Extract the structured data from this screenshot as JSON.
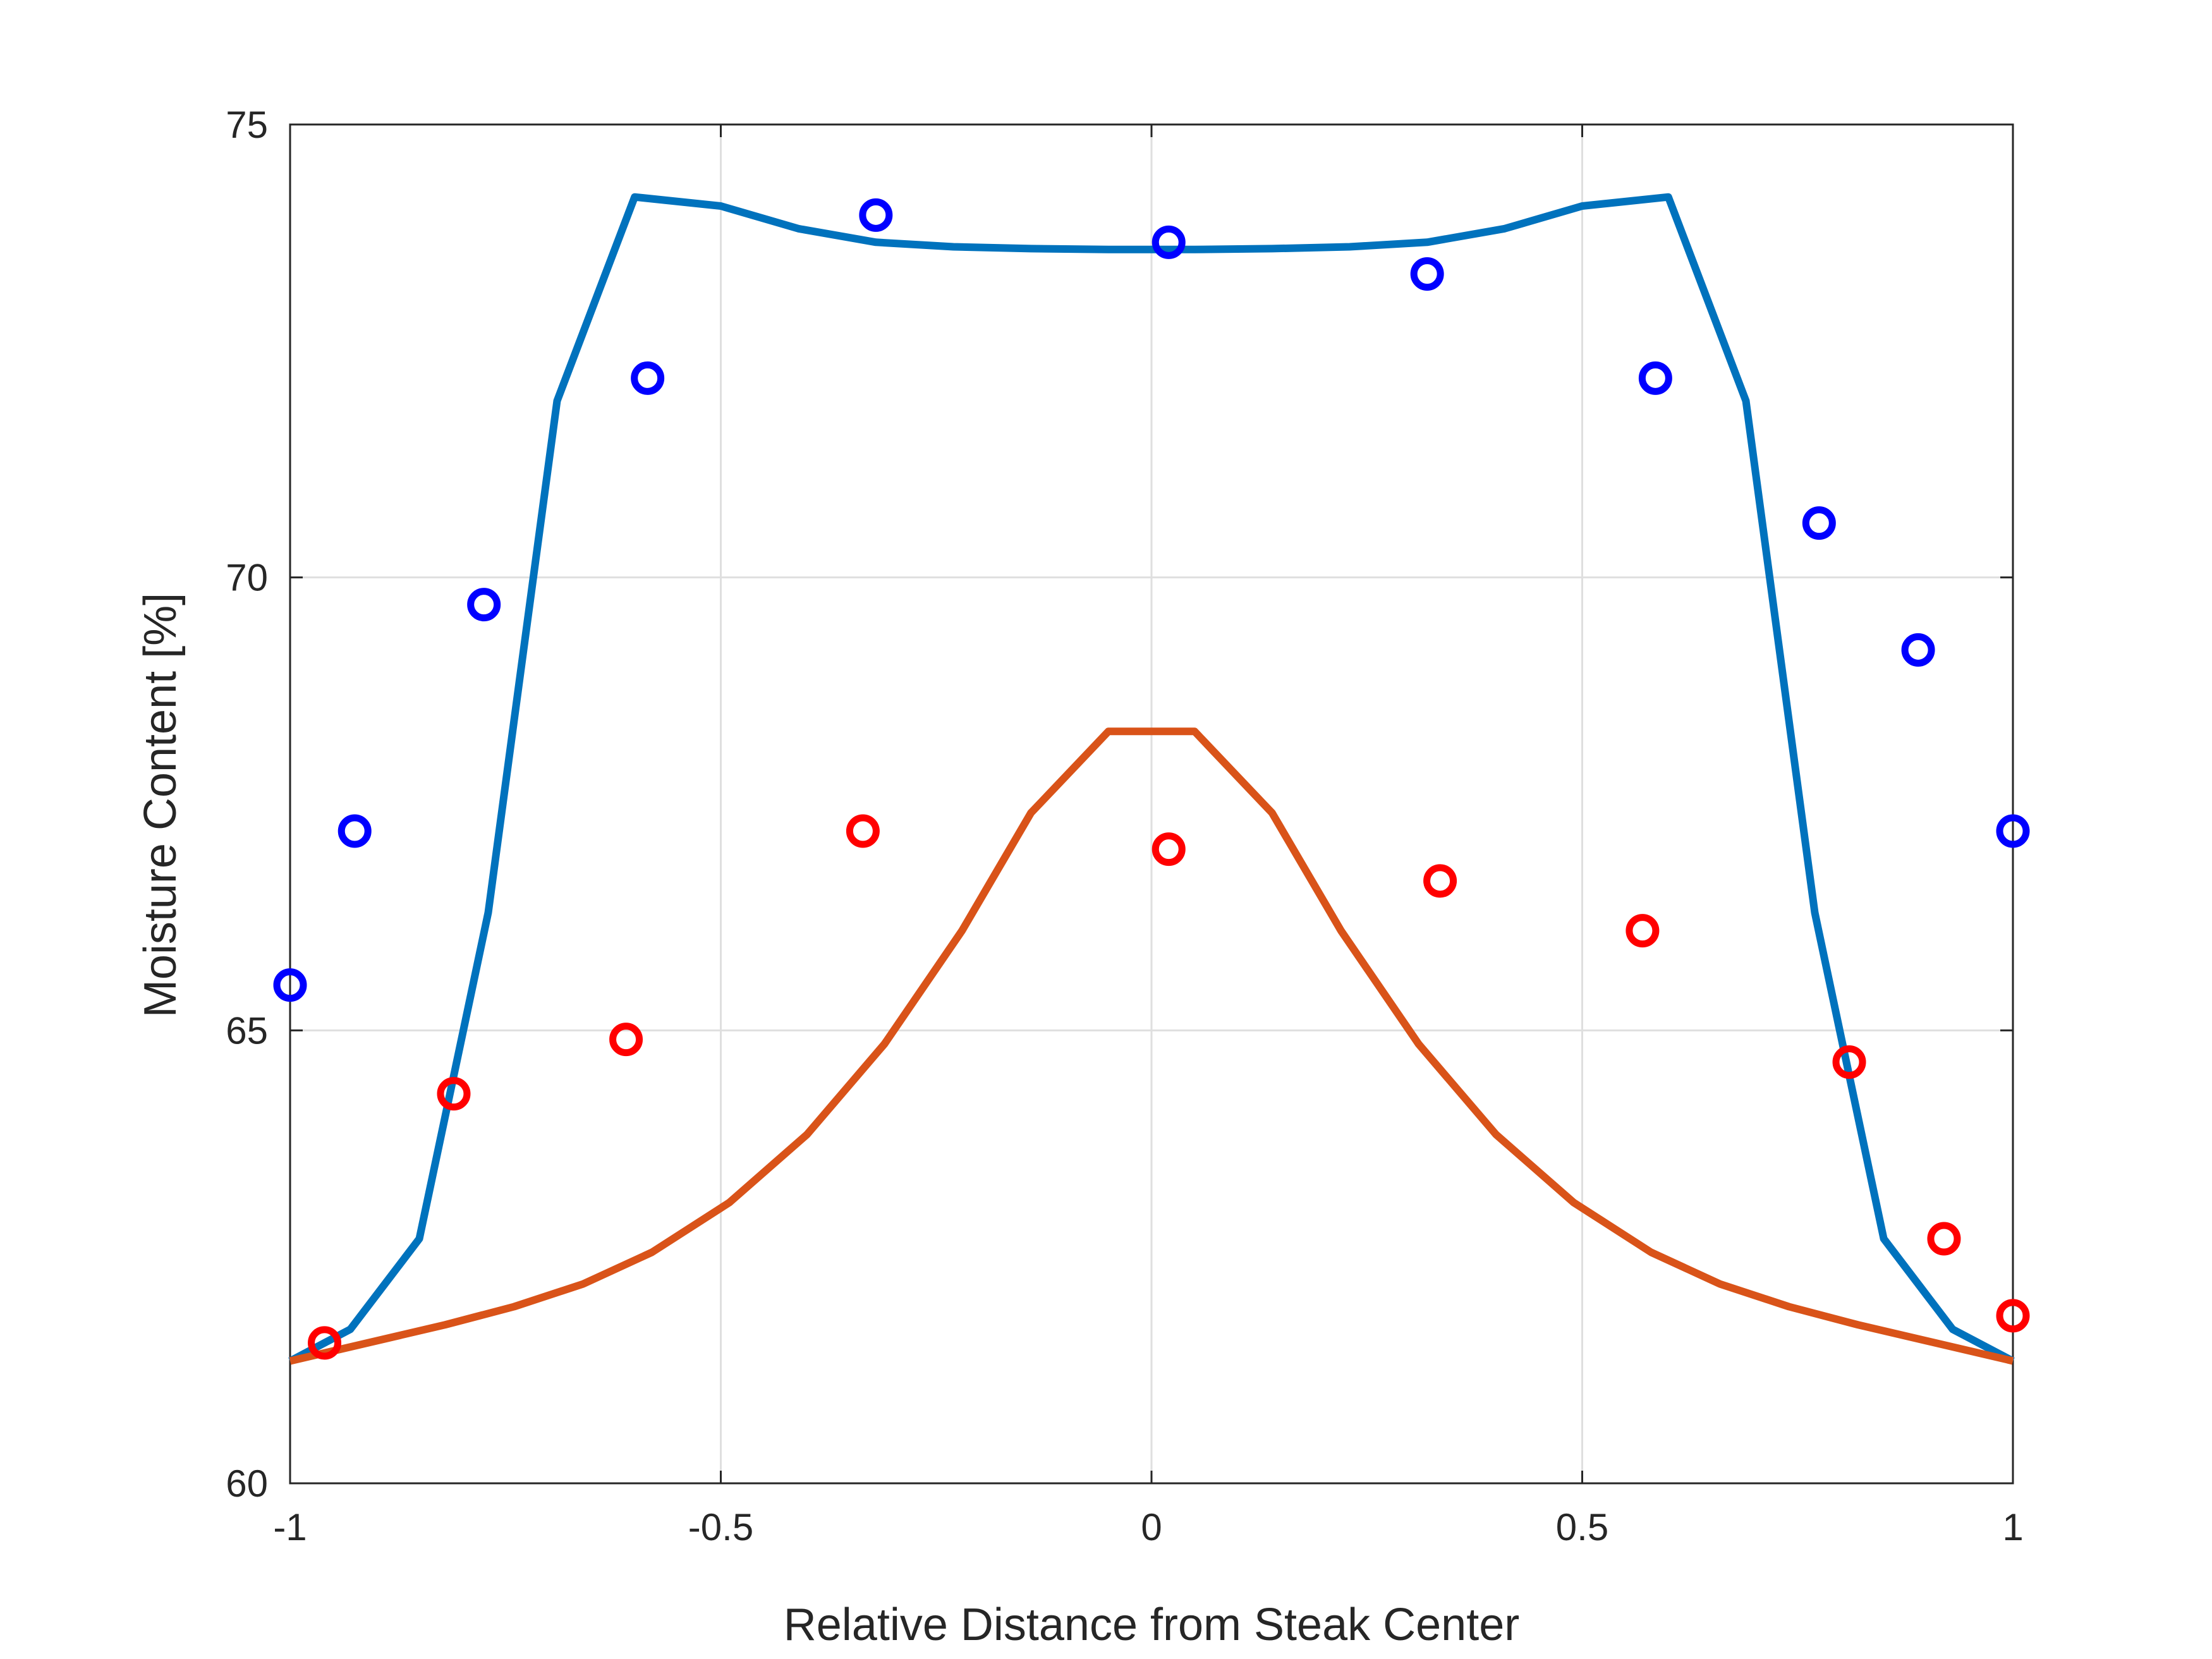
{
  "chart_data": {
    "type": "line",
    "title": "",
    "xlabel": "Relative Distance from Steak Center",
    "ylabel": "Moisture Content [%]",
    "xlim": [
      -1,
      1
    ],
    "ylim": [
      60,
      75
    ],
    "xticks": [
      -1,
      -0.5,
      0,
      0.5,
      1
    ],
    "xtick_labels": [
      "-1",
      "-0.5",
      "0",
      "0.5",
      "1"
    ],
    "yticks": [
      60,
      65,
      70,
      75
    ],
    "ytick_labels": [
      "60",
      "65",
      "70",
      "75"
    ],
    "grid": true,
    "legend": "none",
    "series": [
      {
        "kind": "line",
        "color": "#0072BD",
        "x": [
          -1,
          -0.93,
          -0.85,
          -0.69,
          -0.77,
          -0.6,
          -0.5,
          -0.41,
          -0.32,
          -0.23,
          -0.14,
          -0.05,
          0.05,
          0.14,
          0.23,
          0.32,
          0.41,
          0.5,
          0.6,
          0.69,
          0.77,
          0.85,
          0.93,
          1
        ],
        "y": [
          61.35,
          61.7,
          62.7,
          71.95,
          66.3,
          74.2,
          74.1,
          73.85,
          73.7,
          73.65,
          73.63,
          73.62,
          73.62,
          73.63,
          73.65,
          73.7,
          73.85,
          74.1,
          74.2,
          71.95,
          66.3,
          62.7,
          61.7,
          61.35
        ]
      },
      {
        "kind": "line",
        "color": "#D95319",
        "x": [
          -1,
          -0.82,
          -0.74,
          -0.66,
          -0.58,
          -0.49,
          -0.4,
          -0.31,
          -0.22,
          -0.14,
          -0.05,
          0.05,
          0.14,
          0.22,
          0.31,
          0.4,
          0.49,
          0.58,
          0.66,
          0.74,
          0.82,
          1
        ],
        "y": [
          61.35,
          61.75,
          61.95,
          62.2,
          62.55,
          63.1,
          63.85,
          64.85,
          66.1,
          67.4,
          68.3,
          68.3,
          67.4,
          66.1,
          64.85,
          63.85,
          63.1,
          62.55,
          62.2,
          61.95,
          61.75,
          61.35
        ]
      },
      {
        "kind": "markers",
        "color": "#0000FF",
        "x": [
          -1,
          -0.925,
          -0.775,
          -0.585,
          -0.32,
          0.02,
          0.32,
          0.585,
          0.775,
          0.89,
          1
        ],
        "y": [
          65.5,
          67.2,
          69.7,
          72.2,
          74.0,
          73.7,
          73.35,
          72.2,
          70.6,
          69.2,
          67.2
        ]
      },
      {
        "kind": "markers",
        "color": "#FF0000",
        "x": [
          -0.96,
          -0.81,
          -0.61,
          -0.335,
          0.02,
          0.335,
          0.57,
          0.81,
          0.92,
          1
        ],
        "y": [
          61.55,
          64.3,
          64.9,
          67.2,
          67.0,
          66.65,
          66.1,
          64.65,
          62.7,
          61.85
        ]
      }
    ]
  }
}
